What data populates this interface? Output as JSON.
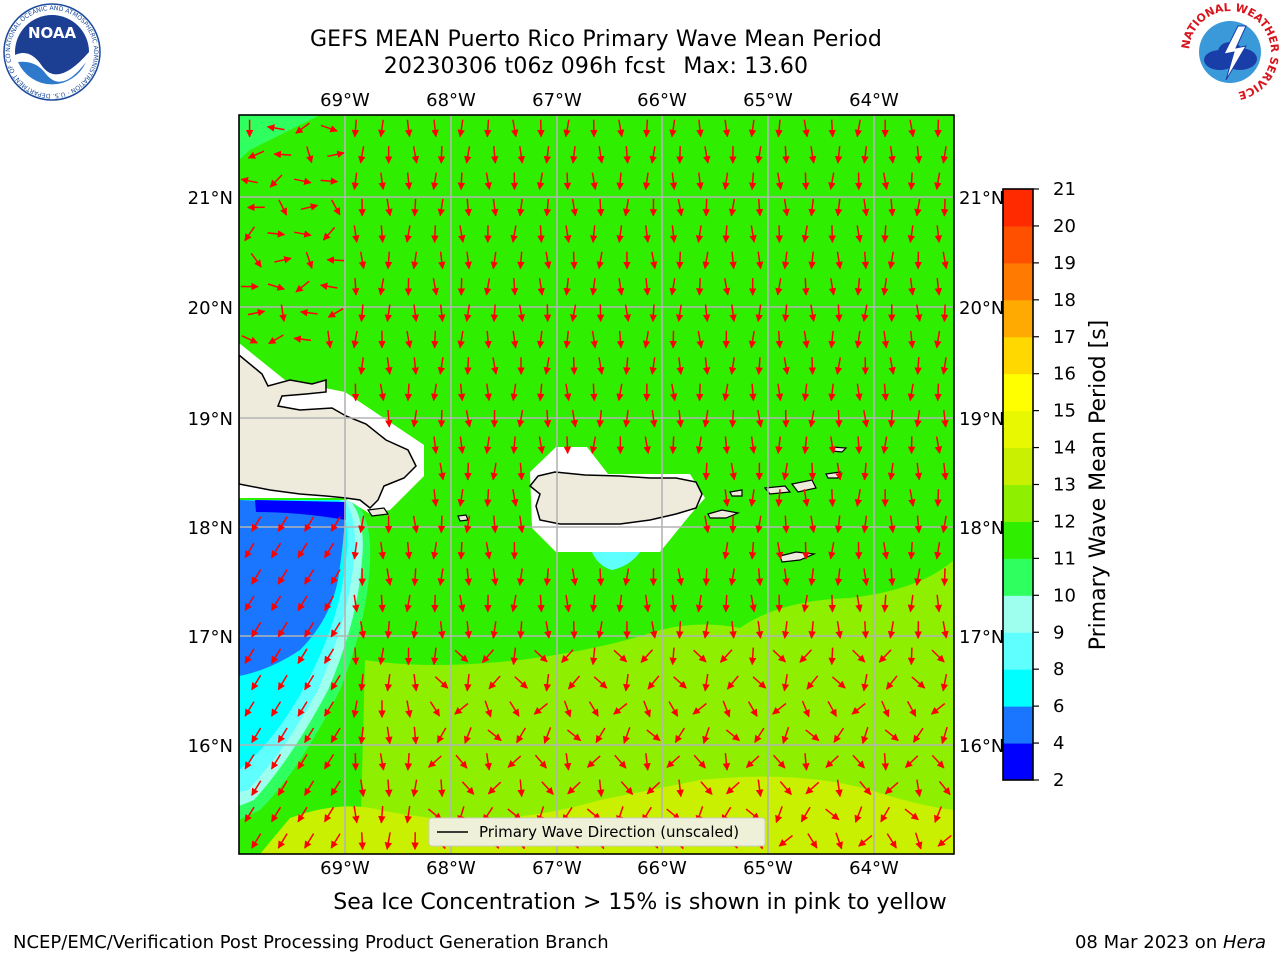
{
  "header": {
    "title_line1": "GEFS MEAN Puerto Rico Primary Wave Mean Period",
    "title_line2_run": "20230306 t06z 096h fcst",
    "title_line2_max": "Max: 13.60"
  },
  "logos": {
    "left": "NOAA",
    "left_ring_text": "NATIONAL OCEANIC AND ATMOSPHERIC ADMINISTRATION · U.S. DEPARTMENT OF COMMERCE",
    "right_ring_text": "NATIONAL WEATHER SERVICE"
  },
  "map": {
    "lon_labels": [
      "69°W",
      "68°W",
      "67°W",
      "66°W",
      "65°W",
      "64°W"
    ],
    "lat_labels": [
      "21°N",
      "20°N",
      "19°N",
      "18°N",
      "17°N",
      "16°N"
    ],
    "legend_label": "Primary Wave Direction (unscaled)",
    "arrow_color": "#ff0000",
    "land_color": "#eeebdd"
  },
  "colorbar": {
    "label": "Primary Wave Mean Period [s]",
    "ticks": [
      "2",
      "4",
      "6",
      "8",
      "9",
      "10",
      "11",
      "12",
      "13",
      "14",
      "15",
      "16",
      "17",
      "18",
      "19",
      "20",
      "21"
    ],
    "colors": [
      "#0000ff",
      "#1a75ff",
      "#00ffff",
      "#5fffff",
      "#9fffef",
      "#30ff60",
      "#30ee00",
      "#8ef000",
      "#c8f000",
      "#e8f800",
      "#ffff00",
      "#ffd800",
      "#ffaa00",
      "#ff7a00",
      "#ff5000",
      "#ff2a00"
    ]
  },
  "captions": {
    "ice_note": "Sea Ice Concentration > 15% is shown in pink to yellow",
    "footer_left": "NCEP/EMC/Verification Post Processing Product Generation Branch",
    "footer_right_date": "08 Mar 2023 on ",
    "footer_right_host": "Hera"
  }
}
